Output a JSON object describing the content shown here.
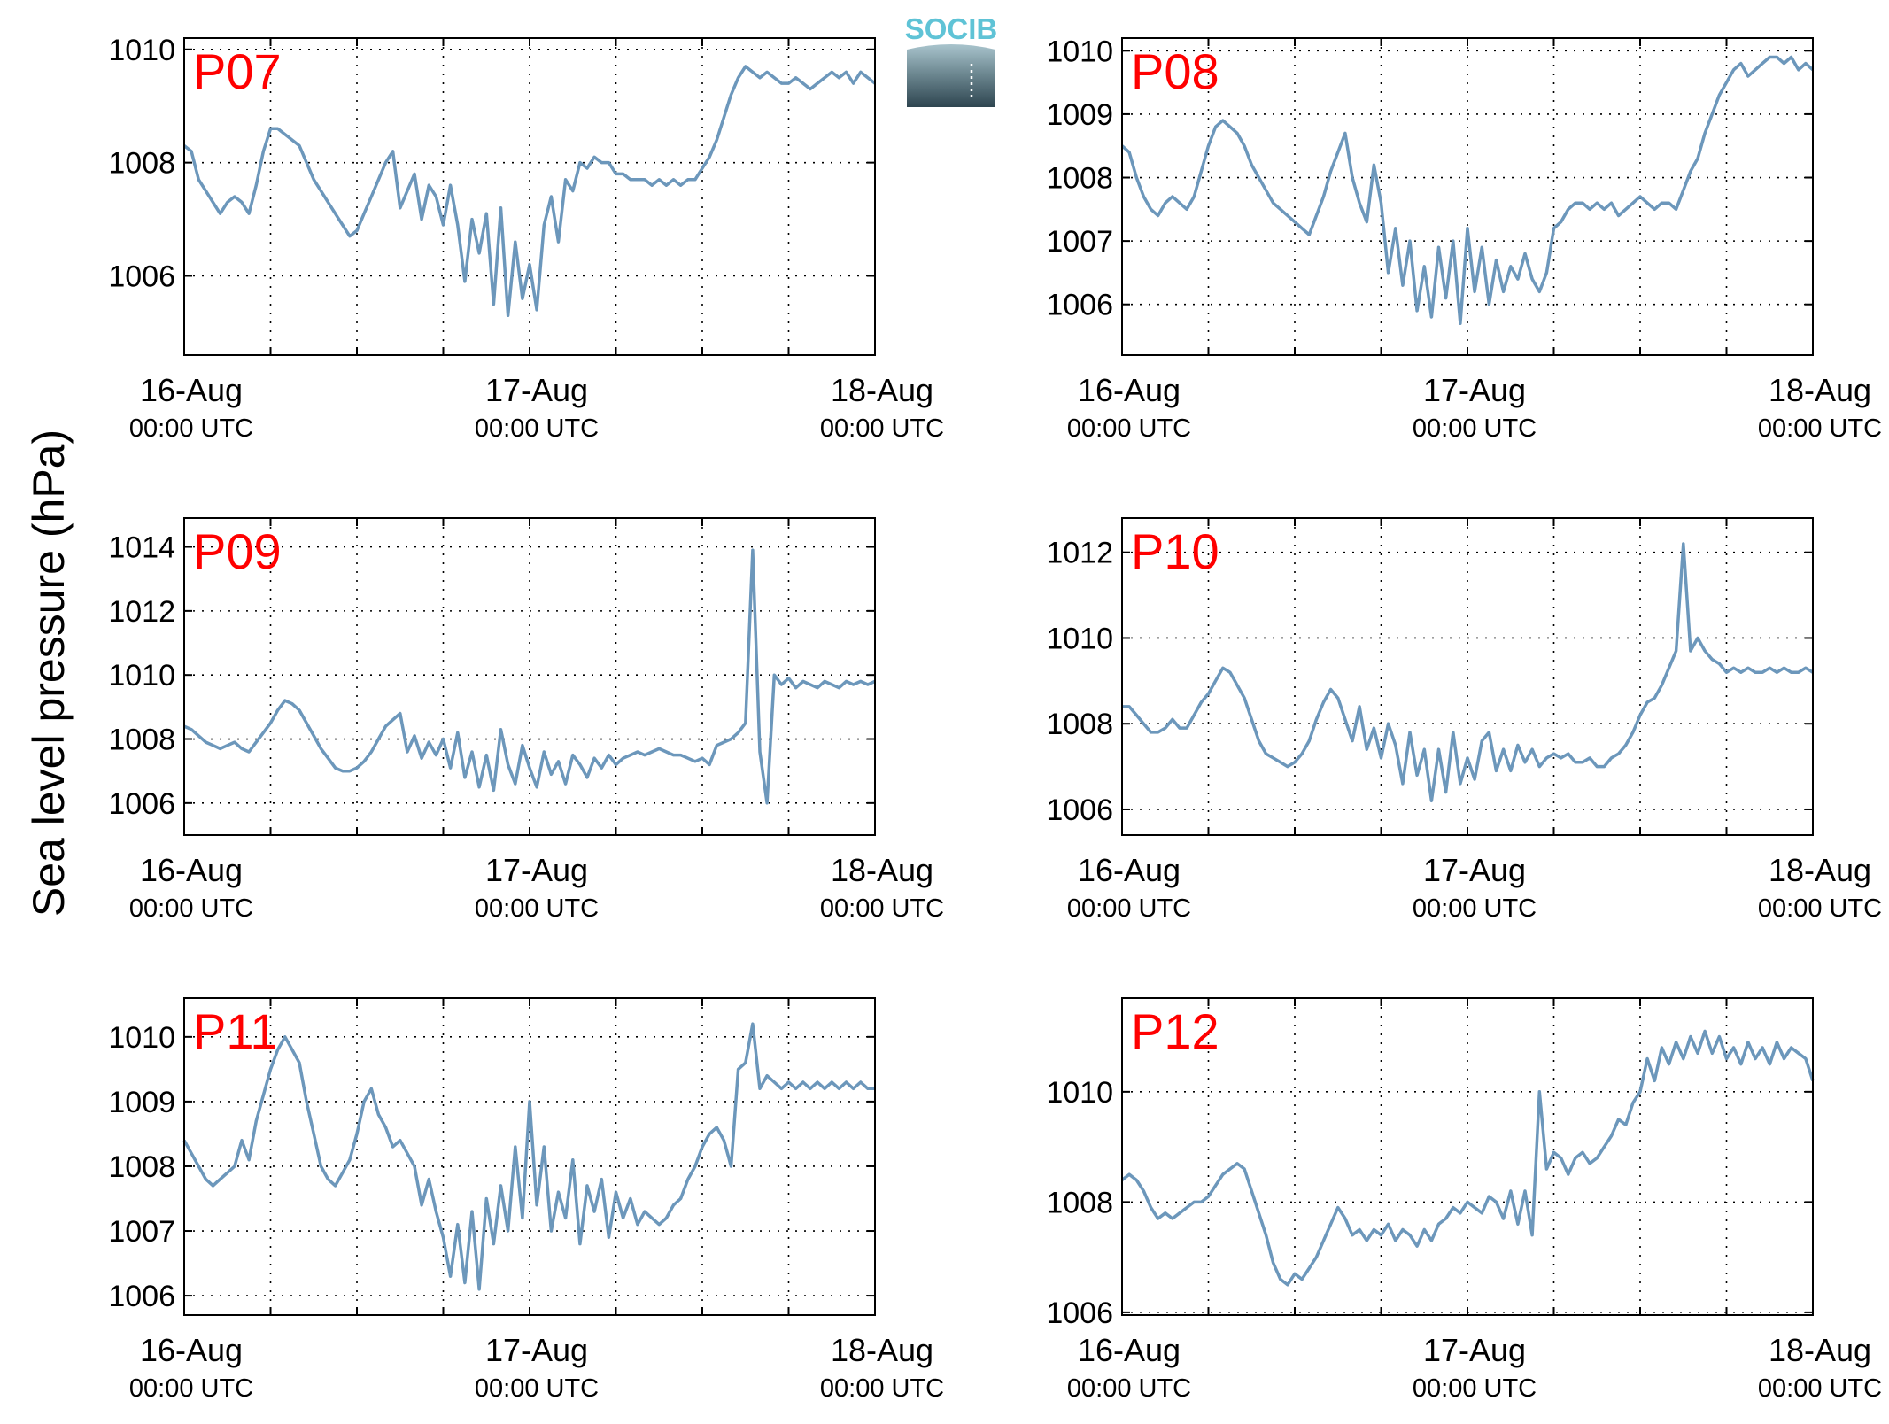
{
  "figure": {
    "ylabel": "Sea level pressure (hPa)",
    "logo_text": "SOCIB",
    "line_color": "#6c97bb",
    "label_color": "#ff0000",
    "grid": "dotted",
    "x_ticks": [
      {
        "x": 0,
        "day": "16-Aug",
        "time": "00:00 UTC"
      },
      {
        "x": 24,
        "day": "17-Aug",
        "time": "00:00 UTC"
      },
      {
        "x": 48,
        "day": "18-Aug",
        "time": "00:00 UTC"
      }
    ],
    "x_minor_ticks": [
      6,
      12,
      18,
      30,
      36,
      42
    ]
  },
  "chart_data": [
    {
      "type": "line",
      "label": "P07",
      "xlim": [
        0,
        48
      ],
      "ylim": [
        1004.6,
        1010.2
      ],
      "yticks": [
        1006,
        1008,
        1010
      ],
      "x": [
        0,
        0.5,
        1,
        1.5,
        2,
        2.5,
        3,
        3.5,
        4,
        4.5,
        5,
        5.5,
        6,
        6.5,
        7,
        7.5,
        8,
        8.5,
        9,
        9.5,
        10,
        10.5,
        11,
        11.5,
        12,
        12.5,
        13,
        13.5,
        14,
        14.5,
        15,
        15.5,
        16,
        16.5,
        17,
        17.5,
        18,
        18.5,
        19,
        19.5,
        20,
        20.5,
        21,
        21.5,
        22,
        22.5,
        23,
        23.5,
        24,
        24.5,
        25,
        25.5,
        26,
        26.5,
        27,
        27.5,
        28,
        28.5,
        29,
        29.5,
        30,
        30.5,
        31,
        31.5,
        32,
        32.5,
        33,
        33.5,
        34,
        34.5,
        35,
        35.5,
        36,
        36.5,
        37,
        37.5,
        38,
        38.5,
        39,
        39.5,
        40,
        40.5,
        41,
        41.5,
        42,
        42.5,
        43,
        43.5,
        44,
        44.5,
        45,
        45.5,
        46,
        46.5,
        47,
        47.5,
        48
      ],
      "y": [
        1008.3,
        1008.2,
        1007.7,
        1007.5,
        1007.3,
        1007.1,
        1007.3,
        1007.4,
        1007.3,
        1007.1,
        1007.6,
        1008.2,
        1008.6,
        1008.6,
        1008.5,
        1008.4,
        1008.3,
        1008.0,
        1007.7,
        1007.5,
        1007.3,
        1007.1,
        1006.9,
        1006.7,
        1006.8,
        1007.1,
        1007.4,
        1007.7,
        1008.0,
        1008.2,
        1007.2,
        1007.5,
        1007.8,
        1007.0,
        1007.6,
        1007.4,
        1006.9,
        1007.6,
        1006.9,
        1005.9,
        1007.0,
        1006.4,
        1007.1,
        1005.5,
        1007.2,
        1005.3,
        1006.6,
        1005.6,
        1006.2,
        1005.4,
        1006.9,
        1007.4,
        1006.6,
        1007.7,
        1007.5,
        1008.0,
        1007.9,
        1008.1,
        1008.0,
        1008.0,
        1007.8,
        1007.8,
        1007.7,
        1007.7,
        1007.7,
        1007.6,
        1007.7,
        1007.6,
        1007.7,
        1007.6,
        1007.7,
        1007.7,
        1007.9,
        1008.1,
        1008.4,
        1008.8,
        1009.2,
        1009.5,
        1009.7,
        1009.6,
        1009.5,
        1009.6,
        1009.5,
        1009.4,
        1009.4,
        1009.5,
        1009.4,
        1009.3,
        1009.4,
        1009.5,
        1009.6,
        1009.5,
        1009.6,
        1009.4,
        1009.6,
        1009.5,
        1009.4
      ]
    },
    {
      "type": "line",
      "label": "P08",
      "xlim": [
        0,
        48
      ],
      "ylim": [
        1005.2,
        1010.2
      ],
      "yticks": [
        1006,
        1007,
        1008,
        1009,
        1010
      ],
      "x": [
        0,
        0.5,
        1,
        1.5,
        2,
        2.5,
        3,
        3.5,
        4,
        4.5,
        5,
        5.5,
        6,
        6.5,
        7,
        7.5,
        8,
        8.5,
        9,
        9.5,
        10,
        10.5,
        11,
        11.5,
        12,
        12.5,
        13,
        13.5,
        14,
        14.5,
        15,
        15.5,
        16,
        16.5,
        17,
        17.5,
        18,
        18.5,
        19,
        19.5,
        20,
        20.5,
        21,
        21.5,
        22,
        22.5,
        23,
        23.5,
        24,
        24.5,
        25,
        25.5,
        26,
        26.5,
        27,
        27.5,
        28,
        28.5,
        29,
        29.5,
        30,
        30.5,
        31,
        31.5,
        32,
        32.5,
        33,
        33.5,
        34,
        34.5,
        35,
        35.5,
        36,
        36.5,
        37,
        37.5,
        38,
        38.5,
        39,
        39.5,
        40,
        40.5,
        41,
        41.5,
        42,
        42.5,
        43,
        43.5,
        44,
        44.5,
        45,
        45.5,
        46,
        46.5,
        47,
        47.5,
        48
      ],
      "y": [
        1008.5,
        1008.4,
        1008.0,
        1007.7,
        1007.5,
        1007.4,
        1007.6,
        1007.7,
        1007.6,
        1007.5,
        1007.7,
        1008.1,
        1008.5,
        1008.8,
        1008.9,
        1008.8,
        1008.7,
        1008.5,
        1008.2,
        1008.0,
        1007.8,
        1007.6,
        1007.5,
        1007.4,
        1007.3,
        1007.2,
        1007.1,
        1007.4,
        1007.7,
        1008.1,
        1008.4,
        1008.7,
        1008.0,
        1007.6,
        1007.3,
        1008.2,
        1007.6,
        1006.5,
        1007.2,
        1006.3,
        1007.0,
        1005.9,
        1006.6,
        1005.8,
        1006.9,
        1006.1,
        1007.0,
        1005.7,
        1007.2,
        1006.2,
        1006.9,
        1006.0,
        1006.7,
        1006.2,
        1006.6,
        1006.4,
        1006.8,
        1006.4,
        1006.2,
        1006.5,
        1007.2,
        1007.3,
        1007.5,
        1007.6,
        1007.6,
        1007.5,
        1007.6,
        1007.5,
        1007.6,
        1007.4,
        1007.5,
        1007.6,
        1007.7,
        1007.6,
        1007.5,
        1007.6,
        1007.6,
        1007.5,
        1007.8,
        1008.1,
        1008.3,
        1008.7,
        1009.0,
        1009.3,
        1009.5,
        1009.7,
        1009.8,
        1009.6,
        1009.7,
        1009.8,
        1009.9,
        1009.9,
        1009.8,
        1009.9,
        1009.7,
        1009.8,
        1009.7
      ]
    },
    {
      "type": "line",
      "label": "P09",
      "xlim": [
        0,
        48
      ],
      "ylim": [
        1005.0,
        1014.9
      ],
      "yticks": [
        1006,
        1008,
        1010,
        1012,
        1014
      ],
      "x": [
        0,
        0.5,
        1,
        1.5,
        2,
        2.5,
        3,
        3.5,
        4,
        4.5,
        5,
        5.5,
        6,
        6.5,
        7,
        7.5,
        8,
        8.5,
        9,
        9.5,
        10,
        10.5,
        11,
        11.5,
        12,
        12.5,
        13,
        13.5,
        14,
        14.5,
        15,
        15.5,
        16,
        16.5,
        17,
        17.5,
        18,
        18.5,
        19,
        19.5,
        20,
        20.5,
        21,
        21.5,
        22,
        22.5,
        23,
        23.5,
        24,
        24.5,
        25,
        25.5,
        26,
        26.5,
        27,
        27.5,
        28,
        28.5,
        29,
        29.5,
        30,
        30.5,
        31,
        31.5,
        32,
        32.5,
        33,
        33.5,
        34,
        34.5,
        35,
        35.5,
        36,
        36.5,
        37,
        37.5,
        38,
        38.5,
        39,
        39.5,
        40,
        40.5,
        41,
        41.5,
        42,
        42.5,
        43,
        43.5,
        44,
        44.5,
        45,
        45.5,
        46,
        46.5,
        47,
        47.5,
        48
      ],
      "y": [
        1008.4,
        1008.3,
        1008.1,
        1007.9,
        1007.8,
        1007.7,
        1007.8,
        1007.9,
        1007.7,
        1007.6,
        1007.9,
        1008.2,
        1008.5,
        1008.9,
        1009.2,
        1009.1,
        1008.9,
        1008.5,
        1008.1,
        1007.7,
        1007.4,
        1007.1,
        1007.0,
        1007.0,
        1007.1,
        1007.3,
        1007.6,
        1008.0,
        1008.4,
        1008.6,
        1008.8,
        1007.6,
        1008.1,
        1007.4,
        1007.9,
        1007.5,
        1008.0,
        1007.1,
        1008.2,
        1006.8,
        1007.6,
        1006.5,
        1007.5,
        1006.4,
        1008.3,
        1007.2,
        1006.6,
        1007.8,
        1007.1,
        1006.5,
        1007.6,
        1006.9,
        1007.3,
        1006.6,
        1007.5,
        1007.2,
        1006.8,
        1007.4,
        1007.1,
        1007.5,
        1007.2,
        1007.4,
        1007.5,
        1007.6,
        1007.5,
        1007.6,
        1007.7,
        1007.6,
        1007.5,
        1007.5,
        1007.4,
        1007.3,
        1007.4,
        1007.2,
        1007.8,
        1007.9,
        1008.0,
        1008.2,
        1008.5,
        1013.9,
        1007.6,
        1006.0,
        1010.0,
        1009.7,
        1009.9,
        1009.6,
        1009.8,
        1009.7,
        1009.6,
        1009.8,
        1009.7,
        1009.6,
        1009.8,
        1009.7,
        1009.8,
        1009.7,
        1009.8
      ]
    },
    {
      "type": "line",
      "label": "P10",
      "xlim": [
        0,
        48
      ],
      "ylim": [
        1005.4,
        1012.8
      ],
      "yticks": [
        1006,
        1008,
        1010,
        1012
      ],
      "x": [
        0,
        0.5,
        1,
        1.5,
        2,
        2.5,
        3,
        3.5,
        4,
        4.5,
        5,
        5.5,
        6,
        6.5,
        7,
        7.5,
        8,
        8.5,
        9,
        9.5,
        10,
        10.5,
        11,
        11.5,
        12,
        12.5,
        13,
        13.5,
        14,
        14.5,
        15,
        15.5,
        16,
        16.5,
        17,
        17.5,
        18,
        18.5,
        19,
        19.5,
        20,
        20.5,
        21,
        21.5,
        22,
        22.5,
        23,
        23.5,
        24,
        24.5,
        25,
        25.5,
        26,
        26.5,
        27,
        27.5,
        28,
        28.5,
        29,
        29.5,
        30,
        30.5,
        31,
        31.5,
        32,
        32.5,
        33,
        33.5,
        34,
        34.5,
        35,
        35.5,
        36,
        36.5,
        37,
        37.5,
        38,
        38.5,
        39,
        39.5,
        40,
        40.5,
        41,
        41.5,
        42,
        42.5,
        43,
        43.5,
        44,
        44.5,
        45,
        45.5,
        46,
        46.5,
        47,
        47.5,
        48
      ],
      "y": [
        1008.4,
        1008.4,
        1008.2,
        1008.0,
        1007.8,
        1007.8,
        1007.9,
        1008.1,
        1007.9,
        1007.9,
        1008.2,
        1008.5,
        1008.7,
        1009.0,
        1009.3,
        1009.2,
        1008.9,
        1008.6,
        1008.1,
        1007.6,
        1007.3,
        1007.2,
        1007.1,
        1007.0,
        1007.1,
        1007.3,
        1007.6,
        1008.1,
        1008.5,
        1008.8,
        1008.6,
        1008.1,
        1007.6,
        1008.4,
        1007.4,
        1007.9,
        1007.2,
        1008.0,
        1007.5,
        1006.6,
        1007.8,
        1006.8,
        1007.4,
        1006.2,
        1007.4,
        1006.4,
        1007.8,
        1006.6,
        1007.2,
        1006.7,
        1007.6,
        1007.8,
        1006.9,
        1007.4,
        1006.9,
        1007.5,
        1007.1,
        1007.4,
        1007.0,
        1007.2,
        1007.3,
        1007.2,
        1007.3,
        1007.1,
        1007.1,
        1007.2,
        1007.0,
        1007.0,
        1007.2,
        1007.3,
        1007.5,
        1007.8,
        1008.2,
        1008.5,
        1008.6,
        1008.9,
        1009.3,
        1009.7,
        1012.2,
        1009.7,
        1010.0,
        1009.7,
        1009.5,
        1009.4,
        1009.2,
        1009.3,
        1009.2,
        1009.3,
        1009.2,
        1009.2,
        1009.3,
        1009.2,
        1009.3,
        1009.2,
        1009.2,
        1009.3,
        1009.2
      ]
    },
    {
      "type": "line",
      "label": "P11",
      "xlim": [
        0,
        48
      ],
      "ylim": [
        1005.7,
        1010.6
      ],
      "yticks": [
        1006,
        1007,
        1008,
        1009,
        1010
      ],
      "x": [
        0,
        0.5,
        1,
        1.5,
        2,
        2.5,
        3,
        3.5,
        4,
        4.5,
        5,
        5.5,
        6,
        6.5,
        7,
        7.5,
        8,
        8.5,
        9,
        9.5,
        10,
        10.5,
        11,
        11.5,
        12,
        12.5,
        13,
        13.5,
        14,
        14.5,
        15,
        15.5,
        16,
        16.5,
        17,
        17.5,
        18,
        18.5,
        19,
        19.5,
        20,
        20.5,
        21,
        21.5,
        22,
        22.5,
        23,
        23.5,
        24,
        24.5,
        25,
        25.5,
        26,
        26.5,
        27,
        27.5,
        28,
        28.5,
        29,
        29.5,
        30,
        30.5,
        31,
        31.5,
        32,
        32.5,
        33,
        33.5,
        34,
        34.5,
        35,
        35.5,
        36,
        36.5,
        37,
        37.5,
        38,
        38.5,
        39,
        39.5,
        40,
        40.5,
        41,
        41.5,
        42,
        42.5,
        43,
        43.5,
        44,
        44.5,
        45,
        45.5,
        46,
        46.5,
        47,
        47.5,
        48
      ],
      "y": [
        1008.4,
        1008.2,
        1008.0,
        1007.8,
        1007.7,
        1007.8,
        1007.9,
        1008.0,
        1008.4,
        1008.1,
        1008.7,
        1009.1,
        1009.5,
        1009.8,
        1010.0,
        1009.8,
        1009.6,
        1009.0,
        1008.5,
        1008.0,
        1007.8,
        1007.7,
        1007.9,
        1008.1,
        1008.5,
        1009.0,
        1009.2,
        1008.8,
        1008.6,
        1008.3,
        1008.4,
        1008.2,
        1008.0,
        1007.4,
        1007.8,
        1007.3,
        1006.9,
        1006.3,
        1007.1,
        1006.2,
        1007.3,
        1006.1,
        1007.5,
        1006.8,
        1007.7,
        1007.0,
        1008.3,
        1007.2,
        1009.0,
        1007.4,
        1008.3,
        1007.0,
        1007.6,
        1007.2,
        1008.1,
        1006.8,
        1007.7,
        1007.3,
        1007.8,
        1006.9,
        1007.6,
        1007.2,
        1007.5,
        1007.1,
        1007.3,
        1007.2,
        1007.1,
        1007.2,
        1007.4,
        1007.5,
        1007.8,
        1008.0,
        1008.3,
        1008.5,
        1008.6,
        1008.4,
        1008.0,
        1009.5,
        1009.6,
        1010.2,
        1009.2,
        1009.4,
        1009.3,
        1009.2,
        1009.3,
        1009.2,
        1009.3,
        1009.2,
        1009.3,
        1009.2,
        1009.3,
        1009.2,
        1009.3,
        1009.2,
        1009.3,
        1009.2,
        1009.2
      ]
    },
    {
      "type": "line",
      "label": "P12",
      "xlim": [
        0,
        48
      ],
      "ylim": [
        1005.95,
        1011.7
      ],
      "yticks": [
        1006,
        1008,
        1010
      ],
      "x": [
        0,
        0.5,
        1,
        1.5,
        2,
        2.5,
        3,
        3.5,
        4,
        4.5,
        5,
        5.5,
        6,
        6.5,
        7,
        7.5,
        8,
        8.5,
        9,
        9.5,
        10,
        10.5,
        11,
        11.5,
        12,
        12.5,
        13,
        13.5,
        14,
        14.5,
        15,
        15.5,
        16,
        16.5,
        17,
        17.5,
        18,
        18.5,
        19,
        19.5,
        20,
        20.5,
        21,
        21.5,
        22,
        22.5,
        23,
        23.5,
        24,
        24.5,
        25,
        25.5,
        26,
        26.5,
        27,
        27.5,
        28,
        28.5,
        29,
        29.5,
        30,
        30.5,
        31,
        31.5,
        32,
        32.5,
        33,
        33.5,
        34,
        34.5,
        35,
        35.5,
        36,
        36.5,
        37,
        37.5,
        38,
        38.5,
        39,
        39.5,
        40,
        40.5,
        41,
        41.5,
        42,
        42.5,
        43,
        43.5,
        44,
        44.5,
        45,
        45.5,
        46,
        46.5,
        47,
        47.5,
        48
      ],
      "y": [
        1008.4,
        1008.5,
        1008.4,
        1008.2,
        1007.9,
        1007.7,
        1007.8,
        1007.7,
        1007.8,
        1007.9,
        1008.0,
        1008.0,
        1008.1,
        1008.3,
        1008.5,
        1008.6,
        1008.7,
        1008.6,
        1008.2,
        1007.8,
        1007.4,
        1006.9,
        1006.6,
        1006.5,
        1006.7,
        1006.6,
        1006.8,
        1007.0,
        1007.3,
        1007.6,
        1007.9,
        1007.7,
        1007.4,
        1007.5,
        1007.3,
        1007.5,
        1007.4,
        1007.6,
        1007.3,
        1007.5,
        1007.4,
        1007.2,
        1007.5,
        1007.3,
        1007.6,
        1007.7,
        1007.9,
        1007.8,
        1008.0,
        1007.9,
        1007.8,
        1008.1,
        1008.0,
        1007.7,
        1008.2,
        1007.6,
        1008.2,
        1007.4,
        1010.0,
        1008.6,
        1008.9,
        1008.8,
        1008.5,
        1008.8,
        1008.9,
        1008.7,
        1008.8,
        1009.0,
        1009.2,
        1009.5,
        1009.4,
        1009.8,
        1010.0,
        1010.6,
        1010.2,
        1010.8,
        1010.5,
        1010.9,
        1010.6,
        1011.0,
        1010.7,
        1011.1,
        1010.7,
        1011.0,
        1010.6,
        1010.8,
        1010.5,
        1010.9,
        1010.6,
        1010.8,
        1010.5,
        1010.9,
        1010.6,
        1010.8,
        1010.7,
        1010.6,
        1010.2
      ]
    }
  ]
}
